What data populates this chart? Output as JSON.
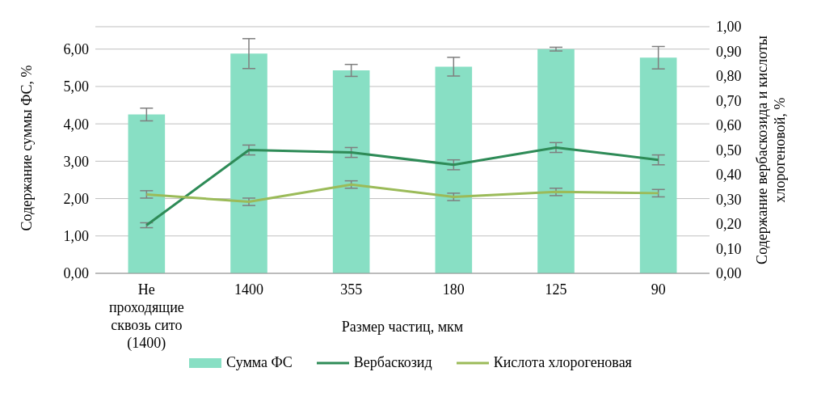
{
  "chart_data": {
    "type": "bar",
    "xlabel": "Размер частиц, мкм",
    "ylabel": "Содержание суммы ФС, %",
    "y2label": "Содержание вербаскозида и кислоты хлорогеновой, %",
    "categories": [
      "Не проходящие сквозь сито (1400)",
      "1400",
      "355",
      "180",
      "125",
      "90"
    ],
    "series": [
      {
        "name": "Сумма ФС",
        "color": "#88dfc4",
        "values": [
          4.25,
          5.88,
          5.43,
          5.53,
          6.0,
          5.77
        ],
        "errors": [
          0.17,
          0.4,
          0.16,
          0.25,
          0.05,
          0.3
        ]
      },
      {
        "name": "Вербаскозид",
        "type": "line",
        "axis": "y2",
        "color": "#2e8b57",
        "values": [
          0.195,
          0.5,
          0.49,
          0.44,
          0.51,
          0.46
        ],
        "errors": [
          0.01,
          0.02,
          0.02,
          0.02,
          0.02,
          0.02
        ]
      },
      {
        "name": "Кислота хлорогеновая",
        "type": "line",
        "axis": "y2",
        "color": "#9bbb59",
        "values": [
          0.32,
          0.29,
          0.36,
          0.31,
          0.33,
          0.325
        ],
        "errors": [
          0.015,
          0.015,
          0.015,
          0.015,
          0.015,
          0.015
        ]
      }
    ],
    "ylim": [
      0,
      6.6
    ],
    "yticks": [
      {
        "value": 0,
        "label": "0,00"
      },
      {
        "value": 1,
        "label": "1,00"
      },
      {
        "value": 2,
        "label": "2,00"
      },
      {
        "value": 3,
        "label": "3,00"
      },
      {
        "value": 4,
        "label": "4,00"
      },
      {
        "value": 5,
        "label": "5,00"
      },
      {
        "value": 6,
        "label": "6,00"
      }
    ],
    "y2lim": [
      0,
      1
    ],
    "y2ticks": [
      {
        "value": 0,
        "label": "0,00"
      },
      {
        "value": 0.1,
        "label": "0,10"
      },
      {
        "value": 0.2,
        "label": "0,20"
      },
      {
        "value": 0.3,
        "label": "0,30"
      },
      {
        "value": 0.4,
        "label": "0,40"
      },
      {
        "value": 0.5,
        "label": "0,50"
      },
      {
        "value": 0.6,
        "label": "0,60"
      },
      {
        "value": 0.7,
        "label": "0,70"
      },
      {
        "value": 0.8,
        "label": "0,80"
      },
      {
        "value": 0.9,
        "label": "0,90"
      },
      {
        "value": 1,
        "label": "1,00"
      }
    ],
    "grid": "y",
    "legend": "bottom",
    "marker": "none",
    "line_style": "solid"
  }
}
